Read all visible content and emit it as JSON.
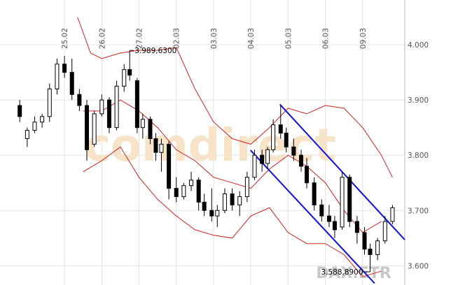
{
  "chart_data": {
    "type": "candlestick",
    "watermark": "comdirect",
    "instrument": "DAX.ETR",
    "xlim": [
      -1.73,
      9.13
    ],
    "ylim": [
      3565,
      4081
    ],
    "xticks": [
      {
        "value": 0,
        "label": "25.02"
      },
      {
        "value": 1,
        "label": "26.02"
      },
      {
        "value": 2,
        "label": "27.02"
      },
      {
        "value": 3,
        "label": "02.03"
      },
      {
        "value": 4,
        "label": "03.03"
      },
      {
        "value": 5,
        "label": "04.03"
      },
      {
        "value": 6,
        "label": "05.03"
      },
      {
        "value": 7,
        "label": "06.03"
      },
      {
        "value": 8,
        "label": "09.03"
      }
    ],
    "yticks": [
      {
        "value": 3600,
        "label": "3.600"
      },
      {
        "value": 3700,
        "label": "3.700"
      },
      {
        "value": 3800,
        "label": "3.800"
      },
      {
        "value": 3900,
        "label": "3.900"
      },
      {
        "value": 4000,
        "label": "4.000"
      }
    ],
    "grid": true,
    "x": [
      -1.2,
      -1.0,
      -0.8,
      -0.6,
      -0.4,
      -0.2,
      0.0,
      0.2,
      0.4,
      0.6,
      0.8,
      1.0,
      1.2,
      1.4,
      1.6,
      1.75,
      1.95,
      2.1,
      2.3,
      2.45,
      2.6,
      2.8,
      3.0,
      3.2,
      3.4,
      3.6,
      3.75,
      3.95,
      4.1,
      4.3,
      4.5,
      4.7,
      4.9,
      5.1,
      5.3,
      5.45,
      5.6,
      5.8,
      5.95,
      6.15,
      6.35,
      6.5,
      6.7,
      6.9,
      7.1,
      7.25,
      7.45,
      7.65,
      7.85,
      8.05,
      8.2,
      8.4,
      8.6,
      8.8
    ],
    "open": [
      3890,
      3830,
      3845,
      3860,
      3870,
      3920,
      3965,
      3950,
      3910,
      3890,
      3820,
      3875,
      3900,
      3850,
      3925,
      3955,
      3935,
      3850,
      3865,
      3830,
      3805,
      3820,
      3740,
      3725,
      3745,
      3755,
      3715,
      3700,
      3690,
      3700,
      3730,
      3710,
      3725,
      3760,
      3800,
      3785,
      3810,
      3855,
      3840,
      3815,
      3800,
      3780,
      3750,
      3710,
      3690,
      3680,
      3670,
      3760,
      3680,
      3660,
      3630,
      3620,
      3645,
      3680
    ],
    "high": [
      3900,
      3850,
      3870,
      3875,
      3930,
      3975,
      3980,
      3975,
      3920,
      3900,
      3880,
      3910,
      3905,
      3935,
      3965,
      3989.63,
      3940,
      3875,
      3870,
      3840,
      3830,
      3825,
      3760,
      3750,
      3770,
      3760,
      3730,
      3740,
      3710,
      3740,
      3740,
      3735,
      3770,
      3810,
      3810,
      3815,
      3865,
      3890,
      3850,
      3830,
      3810,
      3795,
      3760,
      3720,
      3710,
      3690,
      3770,
      3765,
      3690,
      3670,
      3640,
      3650,
      3690,
      3710
    ],
    "low": [
      3860,
      3815,
      3840,
      3850,
      3860,
      3910,
      3940,
      3900,
      3880,
      3790,
      3815,
      3870,
      3840,
      3845,
      3915,
      3935,
      3840,
      3830,
      3820,
      3790,
      3770,
      3720,
      3715,
      3720,
      3735,
      3700,
      3690,
      3680,
      3670,
      3695,
      3700,
      3690,
      3715,
      3755,
      3770,
      3775,
      3805,
      3830,
      3805,
      3790,
      3770,
      3740,
      3700,
      3680,
      3670,
      3650,
      3665,
      3670,
      3640,
      3620,
      3588.89,
      3610,
      3640,
      3675
    ],
    "close": [
      3870,
      3845,
      3860,
      3870,
      3920,
      3965,
      3950,
      3910,
      3890,
      3810,
      3875,
      3900,
      3850,
      3925,
      3955,
      3945,
      3850,
      3865,
      3830,
      3805,
      3820,
      3740,
      3725,
      3745,
      3755,
      3715,
      3700,
      3690,
      3700,
      3730,
      3710,
      3725,
      3760,
      3800,
      3785,
      3810,
      3855,
      3840,
      3815,
      3800,
      3780,
      3750,
      3710,
      3690,
      3680,
      3665,
      3760,
      3680,
      3660,
      3630,
      3620,
      3645,
      3680,
      3705
    ],
    "lines": [
      {
        "color": "#d42020",
        "x": [
          0.35,
          0.7,
          1.0,
          1.5,
          2.0,
          2.5,
          3.0,
          3.5,
          4.0,
          4.5,
          5.0,
          5.5,
          6.0,
          6.5,
          7.0,
          7.5,
          8.0,
          8.5,
          8.8
        ],
        "values": [
          4050,
          3985,
          3975,
          3985,
          3990,
          3990,
          3995,
          3920,
          3860,
          3830,
          3820,
          3850,
          3885,
          3875,
          3890,
          3885,
          3850,
          3800,
          3760
        ]
      },
      {
        "color": "#d42020",
        "x": [
          0.5,
          1.0,
          1.5,
          2.0,
          2.5,
          3.0,
          3.5,
          4.0,
          4.5,
          5.0,
          5.5,
          6.0,
          6.5,
          7.0,
          7.5,
          8.0,
          8.5
        ],
        "values": [
          3880,
          3880,
          3900,
          3880,
          3850,
          3810,
          3790,
          3760,
          3750,
          3740,
          3775,
          3800,
          3780,
          3750,
          3700,
          3660,
          3680
        ]
      },
      {
        "color": "#d42020",
        "x": [
          0.5,
          1.0,
          1.5,
          2.0,
          2.5,
          3.0,
          3.5,
          4.0,
          4.5,
          5.0,
          5.5,
          6.0,
          6.5,
          7.0,
          7.5,
          8.0,
          8.5
        ],
        "values": [
          3770,
          3790,
          3815,
          3760,
          3720,
          3690,
          3665,
          3655,
          3650,
          3690,
          3705,
          3660,
          3640,
          3640,
          3620,
          3580,
          3590
        ]
      },
      {
        "color": "#1010e0",
        "x": [
          5.78,
          9.13
        ],
        "values": [
          3892,
          3647
        ]
      },
      {
        "color": "#1010e0",
        "x": [
          4.99,
          8.32
        ],
        "values": [
          3809,
          3568
        ]
      }
    ],
    "annotations": [
      {
        "text": "3.989,6300",
        "x": 1.75,
        "y": 3989.63
      },
      {
        "text": "3.588,8900",
        "x": 8.2,
        "y": 3588.89
      }
    ]
  }
}
